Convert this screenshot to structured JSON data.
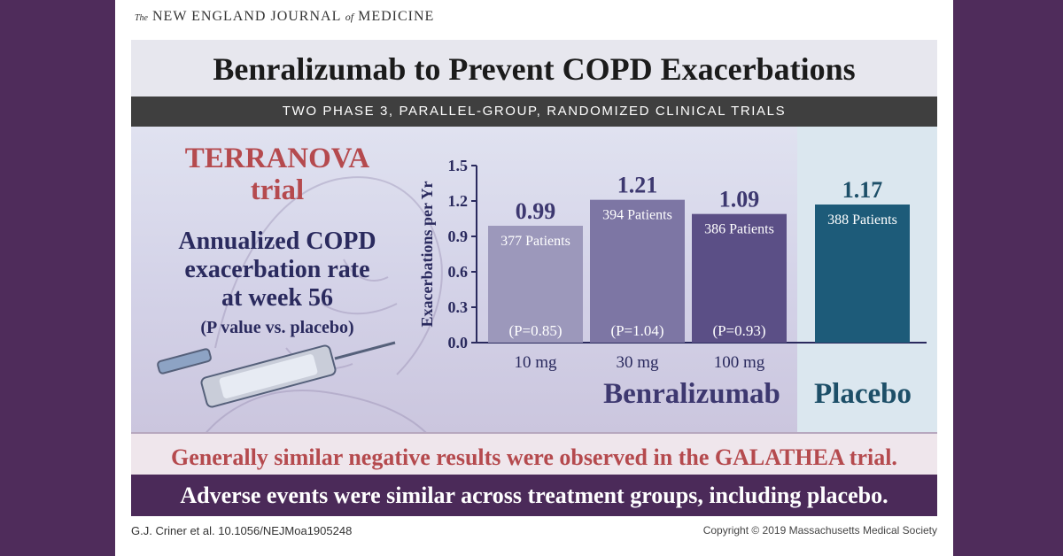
{
  "journal": {
    "the": "The",
    "part1": "NEW ENGLAND JOURNAL",
    "of": "of",
    "part2": "MEDICINE"
  },
  "title": "Benralizumab to Prevent COPD Exacerbations",
  "design": "TWO PHASE 3, PARALLEL-GROUP, RANDOMIZED CLINICAL TRIALS",
  "trial": {
    "line1": "TERRANOVA",
    "line2": "trial"
  },
  "outcome": {
    "line1": "Annualized COPD",
    "line2": "exacerbation rate",
    "line3": "at week 56",
    "note": "(P value vs. placebo)"
  },
  "chart_data": {
    "type": "bar",
    "ylabel": "Exacerbations per Yr",
    "ylim": [
      0,
      1.5
    ],
    "yticks": [
      "0.0",
      "0.3",
      "0.6",
      "0.9",
      "1.2",
      "1.5"
    ],
    "categories": [
      "10 mg",
      "30 mg",
      "100 mg",
      "Placebo"
    ],
    "values": [
      0.99,
      1.21,
      1.09,
      1.17
    ],
    "value_labels": [
      "0.99",
      "1.21",
      "1.09",
      "1.17"
    ],
    "patients": [
      "377 Patients",
      "394 Patients",
      "386 Patients",
      "388 Patients"
    ],
    "p_values": [
      "(P=0.85)",
      "(P=1.04)",
      "(P=0.93)",
      ""
    ],
    "group_labels": {
      "benralizumab": "Benralizumab",
      "placebo": "Placebo"
    },
    "colors": {
      "dose10": "#9c98bb",
      "dose30": "#7d76a4",
      "dose100": "#5b4f86",
      "placebo": "#1d5b79",
      "axis": "#2a2a5e",
      "benra_text": "#3d3870",
      "placebo_text": "#1d4f68"
    }
  },
  "footer": {
    "galathea": "Generally similar negative results were observed in the GALATHEA trial.",
    "adverse": "Adverse events were similar across treatment groups, including placebo.",
    "citation": "G.J. Criner et al.  10.1056/NEJMoa1905248",
    "copyright": "Copyright © 2019 Massachusetts Medical Society"
  }
}
